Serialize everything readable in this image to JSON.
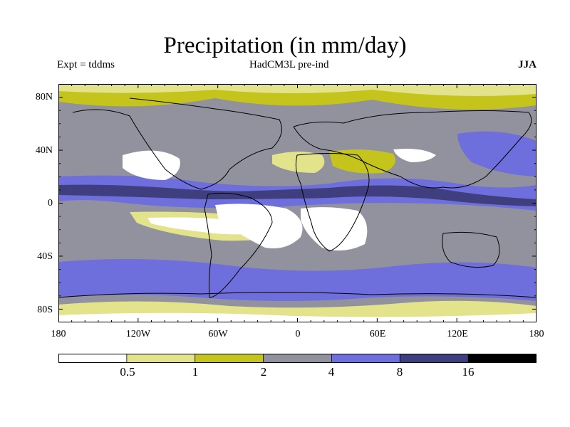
{
  "title": "Precipitation (in mm/day)",
  "subtitle_left": "Expt = tddms",
  "subtitle_center": "HadCM3L pre-ind",
  "subtitle_right": "JJA",
  "lat_labels": [
    "80N",
    "40N",
    "0",
    "40S",
    "80S"
  ],
  "lon_labels": [
    "180",
    "120W",
    "60W",
    "0",
    "60E",
    "120E",
    "180"
  ],
  "colorbar": {
    "boundaries": [
      "0.5",
      "1",
      "2",
      "4",
      "8",
      "16"
    ],
    "colors": [
      "#ffffff",
      "#e3e38c",
      "#c4c41c",
      "#92929f",
      "#6e6edc",
      "#3f3f80",
      "#000000"
    ]
  },
  "map": {
    "ocean_fill": "#92929f",
    "coast_color": "#000000"
  }
}
